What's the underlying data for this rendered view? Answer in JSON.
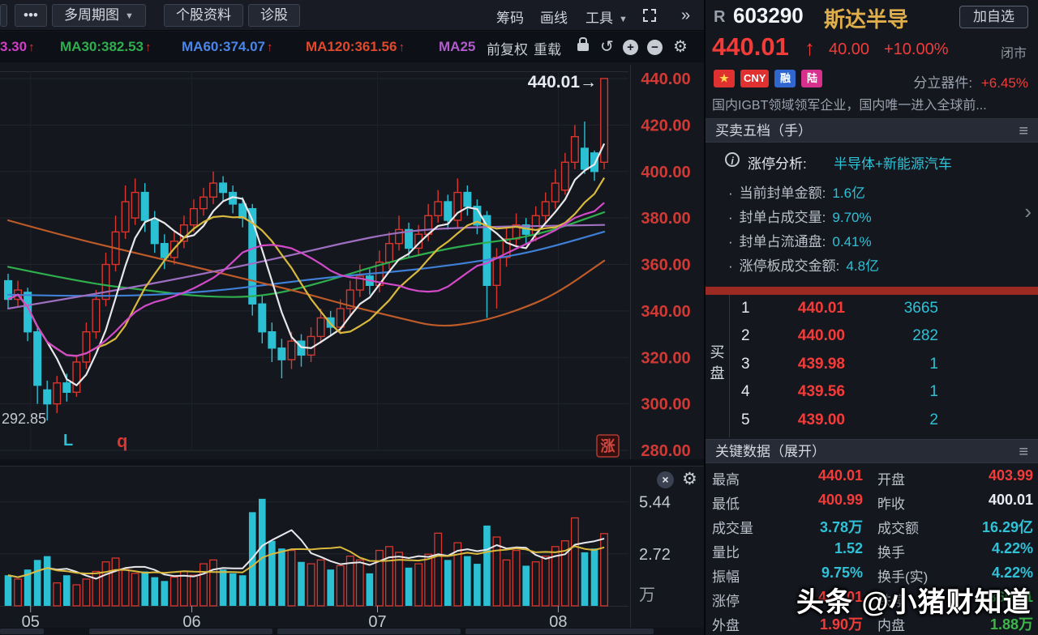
{
  "toolbar": {
    "menu_dots": "•••",
    "tabs": [
      "多周期图",
      "个股资料",
      "诊股"
    ],
    "dropdown_arrow": "▼",
    "right_tools": [
      "筹码",
      "画线",
      "工具"
    ],
    "chevron_more": "»",
    "row2_buttons": [
      "前复权",
      "重载"
    ],
    "icon_undo": "↺",
    "icon_plus": "+",
    "icon_minus": "−",
    "icon_gear": "⚙"
  },
  "ma_row": {
    "up_arrow": "↑",
    "items": [
      {
        "text": "3.30",
        "color": "#cf3fc4",
        "arrow": true
      },
      {
        "text": "MA30:382.53",
        "color": "#2fae4e",
        "arrow": true
      },
      {
        "text": "MA60:374.07",
        "color": "#4a86e8",
        "arrow": true
      },
      {
        "text": "MA120:361.56",
        "color": "#e0492b",
        "arrow": true
      },
      {
        "text": "MA25",
        "color": "#b05ccc",
        "arrow": false
      }
    ]
  },
  "stock": {
    "flag": "R",
    "code": "603290",
    "name": "斯达半导",
    "add_watchlist": "加自选",
    "price": "440.01",
    "up_arrow": "↑",
    "change": "40.00",
    "change_pct": "+10.00%",
    "market_status": "闭市"
  },
  "badges": [
    {
      "text": "★",
      "bg": "#e03131",
      "fg": "#ffd94a",
      "name": "china-flag-badge"
    },
    {
      "text": "CNY",
      "bg": "#e03131",
      "fg": "#ffffff",
      "name": "cny-badge"
    },
    {
      "text": "融",
      "bg": "#2f66d0",
      "fg": "#ffffff",
      "name": "margin-badge"
    },
    {
      "text": "陆",
      "bg": "#d6308c",
      "fg": "#ffffff",
      "name": "mainland-connect-badge"
    }
  ],
  "sector": {
    "label": "分立器件:",
    "value": "+6.45%"
  },
  "description": "国内IGBT领域领军企业，国内唯一进入全球前...",
  "order_book": {
    "header": "买卖五档（手）",
    "hamburger": "≡",
    "side_label": "买盘",
    "rows": [
      {
        "idx": "1",
        "price": "440.01",
        "vol": "3665"
      },
      {
        "idx": "2",
        "price": "440.00",
        "vol": "282"
      },
      {
        "idx": "3",
        "price": "439.98",
        "vol": "1"
      },
      {
        "idx": "4",
        "price": "439.56",
        "vol": "1"
      },
      {
        "idx": "5",
        "price": "439.00",
        "vol": "2"
      }
    ]
  },
  "limit_analysis": {
    "info_icon": "i",
    "title": "涨停分析:",
    "tags": "半导体+新能源汽车",
    "chevron": "›",
    "items": [
      {
        "label": "当前封单金额:",
        "value": "1.6亿"
      },
      {
        "label": "封单占成交量:",
        "value": "9.70%"
      },
      {
        "label": "封单占流通盘:",
        "value": "0.41%"
      },
      {
        "label": "涨停板成交金额:",
        "value": "4.8亿"
      }
    ]
  },
  "key_data": {
    "header": "关键数据（展开）",
    "hamburger": "≡",
    "rows": [
      {
        "l1": "最高",
        "v1": "440.01",
        "c1": "red",
        "l2": "开盘",
        "v2": "403.99",
        "c2": "red"
      },
      {
        "l1": "最低",
        "v1": "400.99",
        "c1": "red",
        "l2": "昨收",
        "v2": "400.01",
        "c2": "white"
      },
      {
        "l1": "成交量",
        "v1": "3.78万",
        "c1": "cyan",
        "l2": "成交额",
        "v2": "16.29亿",
        "c2": "cyan"
      },
      {
        "l1": "量比",
        "v1": "1.52",
        "c1": "cyan",
        "l2": "换手",
        "v2": "4.22%",
        "c2": "cyan"
      },
      {
        "l1": "振幅",
        "v1": "9.75%",
        "c1": "cyan",
        "l2": "换手(实)",
        "v2": "4.22%",
        "c2": "cyan"
      },
      {
        "l1": "涨停",
        "v1": "440.01",
        "c1": "red",
        "l2": "跌停",
        "v2": "360.01",
        "c2": "green"
      },
      {
        "l1": "外盘",
        "v1": "1.90万",
        "c1": "red",
        "l2": "内盘",
        "v2": "1.88万",
        "c2": "green"
      }
    ]
  },
  "watermark": "头条 @小猪财知道",
  "chart_data": {
    "type": "candlestick+volume",
    "price_axis": {
      "min": 280,
      "max": 440,
      "step": 20,
      "labels": [
        "440.00",
        "420.00",
        "400.00",
        "380.00",
        "360.00",
        "340.00",
        "320.00",
        "300.00",
        "280.00"
      ]
    },
    "volume_axis": {
      "labels": [
        "5.44",
        "2.72"
      ],
      "unit": "万"
    },
    "months": [
      {
        "label": "05",
        "i": 2.3
      },
      {
        "label": "06",
        "i": 18.8
      },
      {
        "label": "07",
        "i": 37.8
      },
      {
        "label": "08",
        "i": 56.3
      }
    ],
    "candles": [
      [
        353,
        356,
        341,
        345
      ],
      [
        345,
        353,
        342,
        349
      ],
      [
        348,
        350,
        327,
        331
      ],
      [
        331,
        333,
        300,
        308
      ],
      [
        306,
        310,
        292.85,
        300
      ],
      [
        300,
        312,
        296,
        309
      ],
      [
        309,
        313,
        301,
        305
      ],
      [
        305,
        321,
        303,
        318
      ],
      [
        318,
        335,
        315,
        331
      ],
      [
        331,
        349,
        328,
        345
      ],
      [
        345,
        365,
        342,
        360
      ],
      [
        360,
        381,
        357,
        374
      ],
      [
        374,
        394,
        371,
        387
      ],
      [
        380,
        397,
        377,
        391
      ],
      [
        391,
        395,
        374,
        379
      ],
      [
        379,
        383,
        365,
        369
      ],
      [
        369,
        373,
        358,
        363
      ],
      [
        363,
        374,
        360,
        370
      ],
      [
        370,
        381,
        367,
        377
      ],
      [
        377,
        388,
        374,
        384
      ],
      [
        384,
        393,
        381,
        389
      ],
      [
        389,
        400,
        386,
        395
      ],
      [
        395,
        398,
        387,
        391
      ],
      [
        391,
        394,
        382,
        386
      ],
      [
        386,
        389,
        376,
        380
      ],
      [
        384,
        386,
        338,
        343
      ],
      [
        343,
        347,
        326,
        331
      ],
      [
        331,
        335,
        318,
        324
      ],
      [
        324,
        328,
        311,
        319
      ],
      [
        319,
        331,
        315,
        327
      ],
      [
        327,
        330,
        316,
        321
      ],
      [
        321,
        333,
        318,
        329
      ],
      [
        329,
        341,
        326,
        337
      ],
      [
        337,
        340,
        329,
        333
      ],
      [
        333,
        345,
        330,
        341
      ],
      [
        341,
        353,
        338,
        349
      ],
      [
        349,
        360,
        346,
        355
      ],
      [
        355,
        358,
        347,
        351
      ],
      [
        351,
        366,
        348,
        361
      ],
      [
        361,
        374,
        358,
        369
      ],
      [
        369,
        381,
        366,
        375
      ],
      [
        375,
        378,
        363,
        367
      ],
      [
        367,
        377,
        364,
        373
      ],
      [
        373,
        386,
        370,
        381
      ],
      [
        381,
        392,
        378,
        387
      ],
      [
        387,
        390,
        375,
        379
      ],
      [
        379,
        397,
        376,
        391
      ],
      [
        391,
        394,
        381,
        385
      ],
      [
        385,
        388,
        373,
        377
      ],
      [
        381,
        383,
        337,
        351
      ],
      [
        351,
        367,
        341,
        363
      ],
      [
        363,
        376,
        359,
        371
      ],
      [
        371,
        382,
        368,
        377
      ],
      [
        377,
        380,
        369,
        373
      ],
      [
        373,
        385,
        370,
        381
      ],
      [
        381,
        391,
        378,
        387
      ],
      [
        387,
        401,
        384,
        395
      ],
      [
        392,
        408,
        390,
        404
      ],
      [
        404,
        420,
        401,
        415
      ],
      [
        410,
        421.5,
        399,
        401
      ],
      [
        408,
        409,
        396,
        400.01
      ],
      [
        403.99,
        440.01,
        400.99,
        440.01
      ]
    ],
    "volumes": [
      1.6,
      1.4,
      1.9,
      2.4,
      2.6,
      1.2,
      1.6,
      1.1,
      1.4,
      1.8,
      2.3,
      2.5,
      1.9,
      1.7,
      1.8,
      1.5,
      1.3,
      1.5,
      1.8,
      1.6,
      2.2,
      2.4,
      1.9,
      1.7,
      1.6,
      4.9,
      5.6,
      3.4,
      3.0,
      2.9,
      2.3,
      2.2,
      2.4,
      1.9,
      2.1,
      2.6,
      2.4,
      1.7,
      2.9,
      3.1,
      2.8,
      2.0,
      2.2,
      2.7,
      3.8,
      2.4,
      3.3,
      2.6,
      2.2,
      4.2,
      3.6,
      2.4,
      2.9,
      2.1,
      2.3,
      2.6,
      3.1,
      3.4,
      4.6,
      2.8,
      3.0,
      3.78
    ],
    "colors": {
      "up": "#d7372f",
      "down": "#2bc0d4",
      "axis_text": "#d13a34",
      "grid": "#20242c"
    },
    "overlays": {
      "ma_computed": [
        {
          "name": "MA5",
          "window": 5,
          "color": "#e8e8ea"
        },
        {
          "name": "MA10",
          "window": 10,
          "color": "#d8b93e"
        },
        {
          "name": "MA20",
          "window": 20,
          "color": "#d24ac8"
        }
      ],
      "ma_control": [
        {
          "name": "MA30",
          "color": "#2fae4e",
          "points": [
            [
              0,
              359
            ],
            [
              8,
              352
            ],
            [
              14,
              349
            ],
            [
              20,
              346
            ],
            [
              26,
              346
            ],
            [
              32,
              352
            ],
            [
              38,
              360
            ],
            [
              44,
              366
            ],
            [
              48,
              369
            ],
            [
              52,
              371
            ],
            [
              56,
              375
            ],
            [
              61,
              382.5
            ]
          ]
        },
        {
          "name": "MA60",
          "color": "#3f7fd6",
          "points": [
            [
              0,
              347
            ],
            [
              10,
              346
            ],
            [
              20,
              348
            ],
            [
              28,
              352
            ],
            [
              34,
              355
            ],
            [
              40,
              357
            ],
            [
              46,
              360
            ],
            [
              52,
              364
            ],
            [
              56,
              368
            ],
            [
              61,
              374.1
            ]
          ]
        },
        {
          "name": "MA120",
          "color": "#bf5b28",
          "points": [
            [
              0,
              379
            ],
            [
              6,
              372
            ],
            [
              12,
              366
            ],
            [
              18,
              360
            ],
            [
              24,
              354
            ],
            [
              30,
              348
            ],
            [
              36,
              341
            ],
            [
              40,
              337
            ],
            [
              44,
              333
            ],
            [
              48,
              335
            ],
            [
              52,
              340
            ],
            [
              56,
              347
            ],
            [
              61,
              361.6
            ]
          ]
        },
        {
          "name": "MA250",
          "color": "#9e6fc0",
          "points": [
            [
              0,
              341
            ],
            [
              10,
              348
            ],
            [
              20,
              356
            ],
            [
              28,
              363
            ],
            [
              34,
              369
            ],
            [
              40,
              374
            ],
            [
              46,
              376
            ],
            [
              61,
              377
            ]
          ]
        }
      ]
    },
    "annotations": {
      "last_price_label": "440.01→",
      "low_label": "292.85",
      "marker_l": "L",
      "marker_q": "q",
      "stamp": "涨"
    }
  }
}
